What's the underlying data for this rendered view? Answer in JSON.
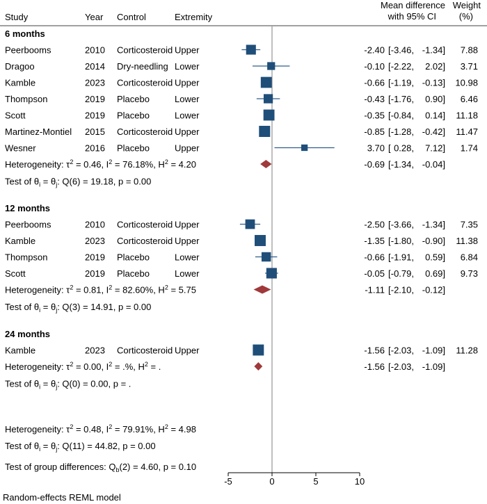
{
  "chart_data": {
    "type": "forest",
    "columns": {
      "study": "Study",
      "year": "Year",
      "control": "Control",
      "extremity": "Extremity",
      "effect_line1": "Mean difference",
      "effect_line2": "with 95% CI",
      "weight_line1": "Weight",
      "weight_line2": "(%)"
    },
    "xaxis": {
      "min": -5,
      "max": 10,
      "ticks": [
        "-5",
        "0",
        "5",
        "10"
      ],
      "null_line": 0
    },
    "groups": [
      {
        "label": "6 months",
        "studies": [
          {
            "study": "Peerbooms",
            "year": "2010",
            "control": "Corticosteroid",
            "extremity": "Upper",
            "md": -2.4,
            "lo": -3.46,
            "hi": -1.34,
            "weight": 7.88,
            "md_text": "-2.40",
            "lo_text": "-3.46,",
            "hi_text": "-1.34]",
            "weight_text": "7.88"
          },
          {
            "study": "Dragoo",
            "year": "2014",
            "control": "Dry-needling",
            "extremity": "Lower",
            "md": -0.1,
            "lo": -2.22,
            "hi": 2.02,
            "weight": 3.71,
            "md_text": "-0.10",
            "lo_text": "-2.22,",
            "hi_text": "2.02]",
            "weight_text": "3.71"
          },
          {
            "study": "Kamble",
            "year": "2023",
            "control": "Corticosteroid",
            "extremity": "Upper",
            "md": -0.66,
            "lo": -1.19,
            "hi": -0.13,
            "weight": 10.98,
            "md_text": "-0.66",
            "lo_text": "-1.19,",
            "hi_text": "-0.13]",
            "weight_text": "10.98"
          },
          {
            "study": "Thompson",
            "year": "2019",
            "control": "Placebo",
            "extremity": "Lower",
            "md": -0.43,
            "lo": -1.76,
            "hi": 0.9,
            "weight": 6.46,
            "md_text": "-0.43",
            "lo_text": "-1.76,",
            "hi_text": "0.90]",
            "weight_text": "6.46"
          },
          {
            "study": "Scott",
            "year": "2019",
            "control": "Placebo",
            "extremity": "Lower",
            "md": -0.35,
            "lo": -0.84,
            "hi": 0.14,
            "weight": 11.18,
            "md_text": "-0.35",
            "lo_text": "-0.84,",
            "hi_text": "0.14]",
            "weight_text": "11.18"
          },
          {
            "study": "Martinez-Montiel",
            "year": "2015",
            "control": "Corticosteroid",
            "extremity": "Upper",
            "md": -0.85,
            "lo": -1.28,
            "hi": -0.42,
            "weight": 11.47,
            "md_text": "-0.85",
            "lo_text": "-1.28,",
            "hi_text": "-0.42]",
            "weight_text": "11.47"
          },
          {
            "study": "Wesner",
            "year": "2016",
            "control": "Placebo",
            "extremity": "Upper",
            "md": 3.7,
            "lo": 0.28,
            "hi": 7.12,
            "weight": 1.74,
            "md_text": "3.70",
            "lo_text": "0.28,",
            "hi_text": "7.12]",
            "weight_text": "1.74"
          }
        ],
        "pooled": {
          "md": -0.69,
          "lo": -1.34,
          "hi": -0.04,
          "md_text": "-0.69",
          "lo_text": "-1.34,",
          "hi_text": "-0.04]"
        },
        "heterogeneity": {
          "tau2": "0.46",
          "i2": "76.18%",
          "h2": "4.20"
        },
        "test": {
          "df": "6",
          "q": "19.18",
          "p": "0.00"
        }
      },
      {
        "label": "12 months",
        "studies": [
          {
            "study": "Peerbooms",
            "year": "2010",
            "control": "Corticosteroid",
            "extremity": "Upper",
            "md": -2.5,
            "lo": -3.66,
            "hi": -1.34,
            "weight": 7.35,
            "md_text": "-2.50",
            "lo_text": "-3.66,",
            "hi_text": "-1.34]",
            "weight_text": "7.35"
          },
          {
            "study": "Kamble",
            "year": "2023",
            "control": "Corticosteroid",
            "extremity": "Upper",
            "md": -1.35,
            "lo": -1.8,
            "hi": -0.9,
            "weight": 11.38,
            "md_text": "-1.35",
            "lo_text": "-1.80,",
            "hi_text": "-0.90]",
            "weight_text": "11.38"
          },
          {
            "study": "Thompson",
            "year": "2019",
            "control": "Placebo",
            "extremity": "Lower",
            "md": -0.66,
            "lo": -1.91,
            "hi": 0.59,
            "weight": 6.84,
            "md_text": "-0.66",
            "lo_text": "-1.91,",
            "hi_text": "0.59]",
            "weight_text": "6.84"
          },
          {
            "study": "Scott",
            "year": "2019",
            "control": "Placebo",
            "extremity": "Lower",
            "md": -0.05,
            "lo": -0.79,
            "hi": 0.69,
            "weight": 9.73,
            "md_text": "-0.05",
            "lo_text": "-0.79,",
            "hi_text": "0.69]",
            "weight_text": "9.73"
          }
        ],
        "pooled": {
          "md": -1.11,
          "lo": -2.1,
          "hi": -0.12,
          "md_text": "-1.11",
          "lo_text": "-2.10,",
          "hi_text": "-0.12]"
        },
        "heterogeneity": {
          "tau2": "0.81",
          "i2": "82.60%",
          "h2": "5.75"
        },
        "test": {
          "df": "3",
          "q": "14.91",
          "p": "0.00"
        }
      },
      {
        "label": "24 months",
        "studies": [
          {
            "study": "Kamble",
            "year": "2023",
            "control": "Corticosteroid",
            "extremity": "Upper",
            "md": -1.56,
            "lo": -2.03,
            "hi": -1.09,
            "weight": 11.28,
            "md_text": "-1.56",
            "lo_text": "-2.03,",
            "hi_text": "-1.09]",
            "weight_text": "11.28"
          }
        ],
        "pooled": {
          "md": -1.56,
          "lo": -2.03,
          "hi": -1.09,
          "md_text": "-1.56",
          "lo_text": "-2.03,",
          "hi_text": "-1.09]"
        },
        "heterogeneity": {
          "tau2": "0.00",
          "i2": ".%",
          "h2": "."
        },
        "test": {
          "df": "0",
          "q": "0.00",
          "p": "."
        }
      }
    ],
    "overall": {
      "heterogeneity": {
        "tau2": "0.48",
        "i2": "79.91%",
        "h2": "4.98"
      },
      "test": {
        "df": "11",
        "q": "44.82",
        "p": "0.00"
      },
      "group_test": {
        "df": "2",
        "q": "4.60",
        "p": "0.10"
      }
    },
    "model_note": "Random-effects REML model",
    "colors": {
      "box": "#1f4e79",
      "ci_line": "#2e5d8a",
      "diamond": "#a0393b",
      "null_line": "#7f7f7f",
      "axis": "#000000"
    }
  }
}
